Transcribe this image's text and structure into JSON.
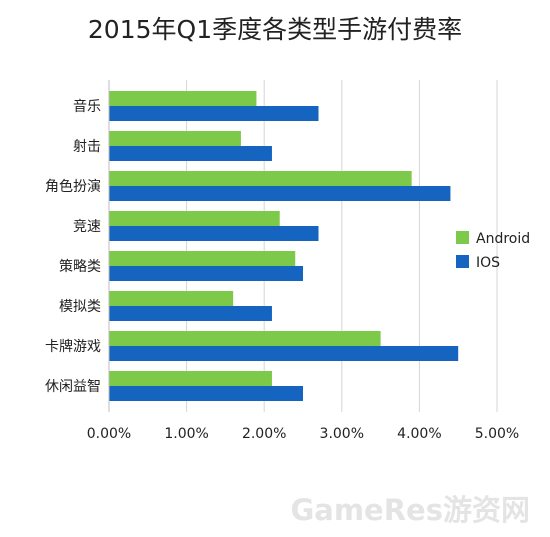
{
  "chart_data": {
    "type": "bar",
    "orientation": "horizontal",
    "title": "2015年Q1季度各类型手游付费率",
    "categories": [
      "音乐",
      "射击",
      "角色扮演",
      "竞速",
      "策略类",
      "模拟类",
      "卡牌游戏",
      "休闲益智"
    ],
    "series": [
      {
        "name": "Android",
        "color": "#7dc94a",
        "values": [
          1.9,
          1.7,
          3.9,
          2.2,
          2.4,
          1.6,
          3.5,
          2.1
        ]
      },
      {
        "name": "IOS",
        "color": "#1565c0",
        "values": [
          2.7,
          2.1,
          4.4,
          2.7,
          2.5,
          2.1,
          4.5,
          2.5
        ]
      }
    ],
    "xlim": [
      0,
      5
    ],
    "xticks": [
      "0.00%",
      "1.00%",
      "2.00%",
      "3.00%",
      "4.00%",
      "5.00%"
    ],
    "xlabel": "",
    "ylabel": "",
    "grid": "vertical",
    "legend": "right"
  },
  "watermark": "GameRes游资网"
}
